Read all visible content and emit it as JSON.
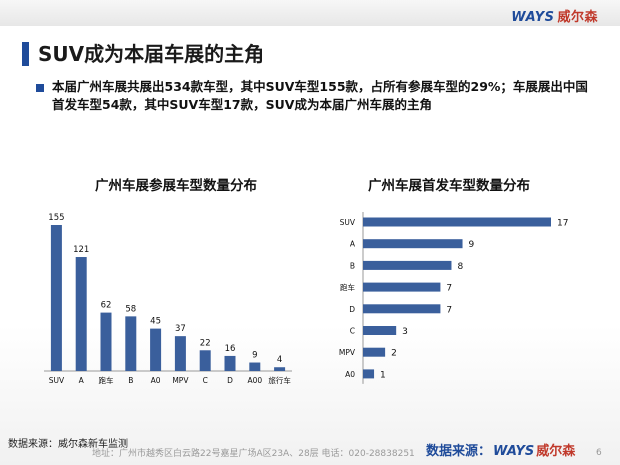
{
  "header": {
    "logo_brand": "WAYS",
    "logo_cn": "威尔森"
  },
  "title": "SUV成为本届车展的主角",
  "bullet": "本届广州车展共展出534款车型，其中SUV车型155款，占所有参展车型的29%；车展展出中国首发车型54款，其中SUV车型17款，SUV成为本届广州车展的主角",
  "colors": {
    "bar": "#3a5f9c",
    "accent": "#1f4b9a",
    "logo_red": "#c0392b"
  },
  "chart_data": [
    {
      "type": "bar",
      "title": "广州车展参展车型数量分布",
      "categories": [
        "SUV",
        "A",
        "跑车",
        "B",
        "A0",
        "MPV",
        "C",
        "D",
        "A00",
        "旅行车"
      ],
      "values": [
        155,
        121,
        62,
        58,
        45,
        37,
        22,
        16,
        9,
        4
      ],
      "ylim": [
        0,
        155
      ],
      "grid": false,
      "legend": false
    },
    {
      "type": "bar",
      "orientation": "horizontal",
      "title": "广州车展首发车型数量分布",
      "categories": [
        "SUV",
        "A",
        "B",
        "跑车",
        "D",
        "C",
        "MPV",
        "A0"
      ],
      "values": [
        17,
        9,
        8,
        7,
        7,
        3,
        2,
        1
      ],
      "xlim": [
        0,
        17
      ],
      "grid": false,
      "legend": false
    }
  ],
  "footer": {
    "source_left": "数据来源：威尔森新车监测",
    "address": "地址：广州市越秀区白云路22号嘉星广场A区23A、28层    电话：020-28838251",
    "source_right_prefix": "数据来源：",
    "source_right_brand": "WAYS",
    "source_right_cn": "威尔森",
    "page": "6"
  }
}
